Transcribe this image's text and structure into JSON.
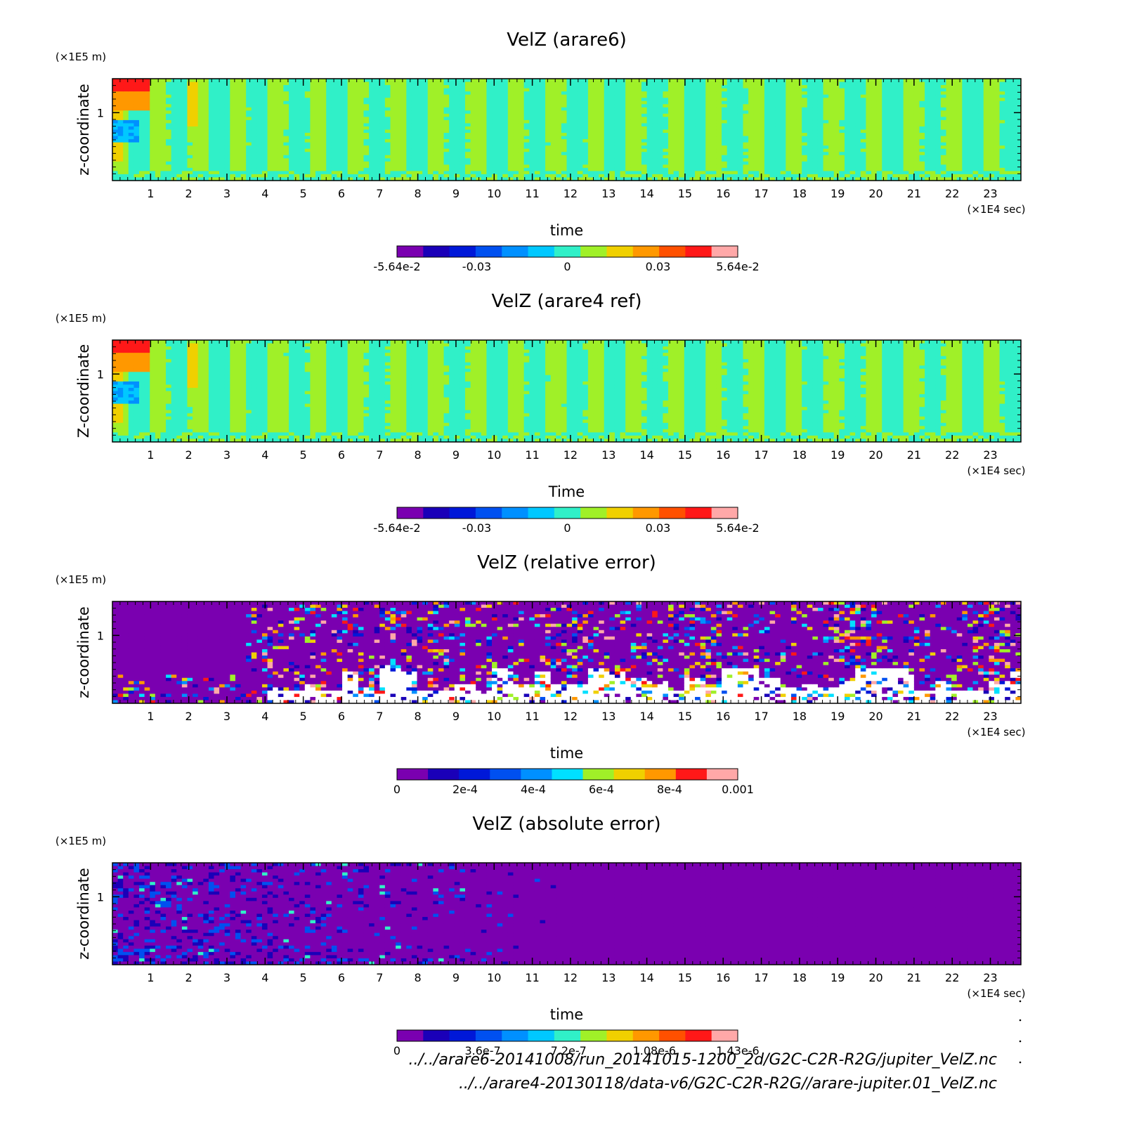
{
  "chart_data": [
    {
      "type": "heatmap",
      "title": "VelZ (arare6)",
      "xlabel": "time",
      "ylabel": "z-coordinate",
      "x_unit": "(×1E4 sec)",
      "y_unit": "(×1E5 m)",
      "xlim": [
        0,
        23.8
      ],
      "ylim": [
        0,
        1.5
      ],
      "x_ticks": [
        1,
        2,
        3,
        4,
        5,
        6,
        7,
        8,
        9,
        10,
        11,
        12,
        13,
        14,
        15,
        16,
        17,
        18,
        19,
        20,
        21,
        22,
        23
      ],
      "y_ticks": [
        1
      ],
      "pattern": "oscillation",
      "colorbar": {
        "colors": [
          "#7a00b0",
          "#1a00b8",
          "#0018d8",
          "#0050f0",
          "#0090ff",
          "#00c8ff",
          "#30f0c8",
          "#a0f028",
          "#f0d000",
          "#ff9800",
          "#ff5000",
          "#ff1818",
          "#ffa8a8"
        ],
        "tick_labels": [
          "-5.64e-2",
          "-0.03",
          "0",
          "0.03",
          "5.64e-2"
        ],
        "tick_values": [
          -0.0564,
          -0.03,
          0,
          0.03,
          0.0564
        ],
        "range": [
          -0.0564,
          0.0564
        ]
      }
    },
    {
      "type": "heatmap",
      "title": "VelZ (arare4 ref)",
      "xlabel": "Time",
      "ylabel": "Z-coordinate",
      "x_unit": "(×1E4 sec)",
      "y_unit": "(×1E5 m)",
      "xlim": [
        0,
        23.8
      ],
      "ylim": [
        0,
        1.5
      ],
      "x_ticks": [
        1,
        2,
        3,
        4,
        5,
        6,
        7,
        8,
        9,
        10,
        11,
        12,
        13,
        14,
        15,
        16,
        17,
        18,
        19,
        20,
        21,
        22,
        23
      ],
      "y_ticks": [
        1
      ],
      "pattern": "oscillation",
      "colorbar": {
        "colors": [
          "#7a00b0",
          "#1a00b8",
          "#0018d8",
          "#0050f0",
          "#0090ff",
          "#00c8ff",
          "#30f0c8",
          "#a0f028",
          "#f0d000",
          "#ff9800",
          "#ff5000",
          "#ff1818",
          "#ffa8a8"
        ],
        "tick_labels": [
          "-5.64e-2",
          "-0.03",
          "0",
          "0.03",
          "5.64e-2"
        ],
        "tick_values": [
          -0.0564,
          -0.03,
          0,
          0.03,
          0.0564
        ],
        "range": [
          -0.0564,
          0.0564
        ]
      }
    },
    {
      "type": "heatmap",
      "title": "VelZ (relative error)",
      "xlabel": "time",
      "ylabel": "z-coordinate",
      "x_unit": "(×1E4 sec)",
      "y_unit": "(×1E5 m)",
      "xlim": [
        0,
        23.8
      ],
      "ylim": [
        0,
        1.5
      ],
      "x_ticks": [
        1,
        2,
        3,
        4,
        5,
        6,
        7,
        8,
        9,
        10,
        11,
        12,
        13,
        14,
        15,
        16,
        17,
        18,
        19,
        20,
        21,
        22,
        23
      ],
      "y_ticks": [
        1
      ],
      "pattern": "relerr",
      "colorbar": {
        "colors": [
          "#7a00b0",
          "#1a00b8",
          "#0018d8",
          "#0050f0",
          "#0090ff",
          "#00e0ff",
          "#a0f028",
          "#f0d000",
          "#ff9800",
          "#ff1818",
          "#ffa8a8"
        ],
        "tick_labels": [
          "0",
          "2e-4",
          "4e-4",
          "6e-4",
          "8e-4",
          "0.001"
        ],
        "tick_values": [
          0,
          0.0002,
          0.0004,
          0.0006,
          0.0008,
          0.001
        ],
        "range": [
          0,
          0.001
        ]
      }
    },
    {
      "type": "heatmap",
      "title": "VelZ (absolute error)",
      "xlabel": "time",
      "ylabel": "z-coordinate",
      "x_unit": "(×1E4 sec)",
      "y_unit": "(×1E5 m)",
      "xlim": [
        0,
        23.8
      ],
      "ylim": [
        0,
        1.5
      ],
      "x_ticks": [
        1,
        2,
        3,
        4,
        5,
        6,
        7,
        8,
        9,
        10,
        11,
        12,
        13,
        14,
        15,
        16,
        17,
        18,
        19,
        20,
        21,
        22,
        23
      ],
      "y_ticks": [
        1
      ],
      "pattern": "abserr",
      "colorbar": {
        "colors": [
          "#7a00b0",
          "#1a00b8",
          "#0018d8",
          "#0050f0",
          "#0090ff",
          "#00c8ff",
          "#30f0c8",
          "#a0f028",
          "#f0d000",
          "#ff9800",
          "#ff5000",
          "#ff1818",
          "#ffa8a8"
        ],
        "tick_labels": [
          "0",
          "3.6e-7",
          "7.2e-7",
          "1.08e-6",
          "1.43e-6"
        ],
        "tick_values": [
          0,
          3.6e-07,
          7.2e-07,
          1.08e-06,
          1.43e-06
        ],
        "range": [
          0,
          1.43e-06
        ]
      }
    }
  ],
  "footer": {
    "path1": "../../arare6-20141008/run_20141015-1200_2d/G2C-C2R-R2G/jupiter_VelZ.nc",
    "path2": "../../arare4-20130118/data-v6/G2C-C2R-R2G//arare-jupiter.01_VelZ.nc"
  }
}
